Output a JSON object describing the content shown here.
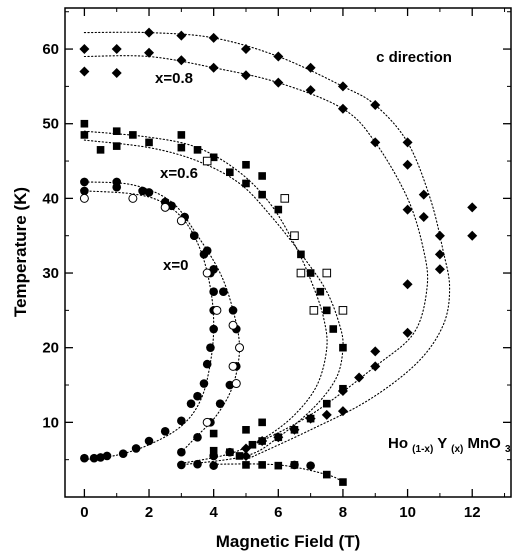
{
  "chart_data": {
    "type": "scatter",
    "title": "",
    "xlabel": "Magnetic Field (T)",
    "ylabel": "Temperature (K)",
    "xlim": [
      -0.6,
      13.2
    ],
    "ylim": [
      0,
      65.5
    ],
    "xticks": [
      "0",
      "2",
      "4",
      "6",
      "8",
      "10",
      "12"
    ],
    "yticks": [
      "10",
      "20",
      "30",
      "40",
      "50",
      "60"
    ],
    "grid": false,
    "legend": "none",
    "annotations": {
      "direction": "c direction",
      "x0": "x=0",
      "x06": "x=0.6",
      "x08": "x=0.8",
      "formula": {
        "main1": "Ho",
        "sub1": "(1-x)",
        "main2": "Y",
        "sub2": "(x)",
        "main3": "MnO",
        "sub3": "3"
      }
    },
    "series": [
      {
        "marker": "filled-circle",
        "points": [
          [
            0.0,
            5.2
          ],
          [
            0.3,
            5.2
          ],
          [
            0.5,
            5.3
          ],
          [
            0.7,
            5.5
          ],
          [
            1.2,
            5.8
          ],
          [
            1.6,
            6.5
          ],
          [
            2.0,
            7.5
          ],
          [
            2.5,
            8.8
          ],
          [
            3.0,
            10.2
          ],
          [
            3.3,
            12.5
          ],
          [
            3.5,
            13.5
          ],
          [
            3.7,
            15.2
          ],
          [
            3.8,
            17.8
          ],
          [
            3.9,
            20.0
          ],
          [
            4.0,
            22.5
          ],
          [
            4.0,
            25.0
          ],
          [
            4.0,
            27.5
          ],
          [
            3.9,
            30.0
          ],
          [
            3.7,
            32.5
          ],
          [
            3.4,
            35.0
          ],
          [
            3.1,
            37.5
          ],
          [
            2.5,
            39.5
          ],
          [
            1.8,
            41.0
          ],
          [
            1.0,
            41.5
          ],
          [
            0.0,
            41.0
          ],
          [
            0.0,
            42.2
          ],
          [
            1.0,
            42.2
          ],
          [
            2.0,
            40.8
          ],
          [
            2.7,
            39.0
          ],
          [
            3.1,
            37.5
          ],
          [
            3.4,
            35.0
          ],
          [
            3.8,
            33.0
          ],
          [
            4.0,
            30.5
          ],
          [
            4.3,
            27.5
          ],
          [
            4.6,
            25.0
          ],
          [
            4.7,
            22.5
          ],
          [
            4.8,
            20.0
          ],
          [
            4.7,
            17.5
          ],
          [
            4.5,
            15.0
          ],
          [
            4.2,
            12.5
          ],
          [
            3.9,
            10.0
          ],
          [
            3.5,
            8.0
          ],
          [
            3.0,
            6.0
          ],
          [
            3.0,
            4.3
          ],
          [
            3.5,
            4.4
          ],
          [
            4.0,
            4.2
          ],
          [
            4.0,
            5.5
          ],
          [
            4.5,
            6.0
          ],
          [
            6.5,
            4.3
          ],
          [
            7.0,
            4.2
          ]
        ]
      },
      {
        "marker": "open-circle",
        "points": [
          [
            0.0,
            40.0
          ],
          [
            1.5,
            40.0
          ],
          [
            2.5,
            38.8
          ],
          [
            3.0,
            37.0
          ],
          [
            3.8,
            30.0
          ],
          [
            4.1,
            25.0
          ],
          [
            4.6,
            23.0
          ],
          [
            4.8,
            20.0
          ],
          [
            4.6,
            17.5
          ],
          [
            4.7,
            15.2
          ],
          [
            3.8,
            10.0
          ]
        ]
      },
      {
        "marker": "filled-square",
        "points": [
          [
            0.0,
            50.0
          ],
          [
            0.0,
            48.5
          ],
          [
            0.5,
            46.5
          ],
          [
            1.0,
            49.0
          ],
          [
            1.0,
            47.0
          ],
          [
            1.5,
            48.5
          ],
          [
            2.0,
            47.5
          ],
          [
            3.0,
            48.5
          ],
          [
            3.0,
            46.8
          ],
          [
            3.5,
            46.5
          ],
          [
            4.0,
            45.5
          ],
          [
            4.5,
            43.5
          ],
          [
            5.0,
            44.5
          ],
          [
            5.0,
            42.0
          ],
          [
            5.5,
            43.0
          ],
          [
            5.5,
            40.5
          ],
          [
            6.0,
            38.5
          ],
          [
            6.5,
            35.0
          ],
          [
            6.7,
            32.5
          ],
          [
            7.0,
            30.0
          ],
          [
            7.3,
            27.5
          ],
          [
            7.5,
            25.0
          ],
          [
            7.7,
            22.5
          ],
          [
            8.0,
            20.0
          ],
          [
            8.0,
            14.5
          ],
          [
            7.5,
            12.5
          ],
          [
            7.0,
            10.5
          ],
          [
            6.5,
            9.0
          ],
          [
            6.0,
            8.0
          ],
          [
            5.5,
            7.5
          ],
          [
            5.2,
            7.0
          ],
          [
            4.8,
            5.5
          ],
          [
            4.5,
            6.0
          ],
          [
            4.0,
            8.5
          ],
          [
            5.0,
            9.0
          ],
          [
            5.5,
            10.0
          ],
          [
            4.0,
            6.2
          ],
          [
            6.0,
            4.2
          ],
          [
            6.5,
            4.3
          ],
          [
            7.5,
            3.0
          ],
          [
            8.0,
            2.0
          ],
          [
            5.5,
            4.3
          ],
          [
            5.0,
            4.3
          ]
        ]
      },
      {
        "marker": "open-square",
        "points": [
          [
            3.8,
            45.0
          ],
          [
            6.2,
            40.0
          ],
          [
            6.7,
            30.0
          ],
          [
            7.1,
            25.0
          ],
          [
            7.5,
            30.0
          ],
          [
            8.0,
            25.0
          ],
          [
            6.5,
            35.0
          ]
        ]
      },
      {
        "marker": "filled-diamond",
        "points": [
          [
            0.0,
            60.0
          ],
          [
            0.0,
            57.0
          ],
          [
            1.0,
            60.0
          ],
          [
            1.0,
            56.8
          ],
          [
            2.0,
            62.2
          ],
          [
            2.0,
            59.5
          ],
          [
            3.0,
            61.8
          ],
          [
            3.0,
            58.5
          ],
          [
            4.0,
            61.5
          ],
          [
            4.0,
            57.5
          ],
          [
            5.0,
            60.0
          ],
          [
            5.0,
            56.5
          ],
          [
            6.0,
            59.0
          ],
          [
            6.0,
            55.5
          ],
          [
            7.0,
            57.5
          ],
          [
            7.0,
            54.5
          ],
          [
            8.0,
            55.0
          ],
          [
            8.0,
            52.0
          ],
          [
            9.0,
            52.5
          ],
          [
            9.0,
            47.5
          ],
          [
            10.0,
            47.5
          ],
          [
            10.0,
            44.5
          ],
          [
            10.5,
            40.5
          ],
          [
            10.5,
            37.5
          ],
          [
            11.0,
            35.0
          ],
          [
            11.0,
            32.5
          ],
          [
            11.0,
            30.5
          ],
          [
            12.0,
            38.8
          ],
          [
            12.0,
            35.0
          ],
          [
            10.0,
            38.5
          ],
          [
            10.0,
            28.5
          ],
          [
            10.0,
            22.0
          ],
          [
            9.0,
            19.5
          ],
          [
            9.0,
            17.5
          ],
          [
            8.5,
            16.0
          ],
          [
            8.0,
            14.2
          ],
          [
            8.0,
            11.5
          ],
          [
            7.5,
            11.0
          ],
          [
            7.0,
            10.5
          ],
          [
            6.5,
            9.0
          ],
          [
            6.0,
            8.0
          ],
          [
            5.5,
            7.5
          ],
          [
            5.0,
            6.5
          ],
          [
            5.0,
            5.5
          ]
        ]
      }
    ],
    "fit_curves": [
      [
        [
          0.0,
          5.0
        ],
        [
          1.0,
          5.6
        ],
        [
          2.0,
          7.0
        ],
        [
          3.0,
          9.5
        ],
        [
          3.6,
          13.0
        ],
        [
          3.9,
          18.0
        ],
        [
          4.0,
          23.0
        ],
        [
          3.9,
          28.0
        ],
        [
          3.6,
          33.0
        ],
        [
          3.1,
          37.0
        ],
        [
          2.4,
          39.5
        ],
        [
          1.5,
          40.6
        ],
        [
          0.0,
          41.0
        ]
      ],
      [
        [
          0.0,
          42.2
        ],
        [
          1.5,
          41.8
        ],
        [
          2.7,
          39.5
        ],
        [
          3.5,
          35.0
        ],
        [
          4.2,
          30.0
        ],
        [
          4.6,
          25.0
        ],
        [
          4.8,
          20.0
        ],
        [
          4.6,
          15.0
        ],
        [
          4.1,
          11.0
        ],
        [
          3.4,
          7.8
        ],
        [
          3.0,
          6.0
        ]
      ],
      [
        [
          0.0,
          49.0
        ],
        [
          2.0,
          48.2
        ],
        [
          3.5,
          46.8
        ],
        [
          4.8,
          43.5
        ],
        [
          5.8,
          39.0
        ],
        [
          6.6,
          33.0
        ],
        [
          7.1,
          28.0
        ],
        [
          7.4,
          24.0
        ],
        [
          7.5,
          20.0
        ],
        [
          7.2,
          15.0
        ],
        [
          6.5,
          11.0
        ],
        [
          5.6,
          8.0
        ],
        [
          4.5,
          5.8
        ],
        [
          3.0,
          4.5
        ]
      ],
      [
        [
          0.0,
          47.8
        ],
        [
          2.0,
          46.8
        ],
        [
          3.5,
          45.0
        ],
        [
          4.8,
          42.0
        ],
        [
          5.8,
          37.5
        ],
        [
          6.8,
          32.0
        ],
        [
          7.5,
          27.5
        ],
        [
          7.9,
          23.0
        ],
        [
          8.0,
          20.0
        ],
        [
          7.8,
          16.0
        ],
        [
          7.1,
          12.0
        ],
        [
          6.0,
          8.0
        ],
        [
          5.0,
          5.5
        ],
        [
          3.0,
          4.3
        ]
      ],
      [
        [
          4.0,
          4.4
        ],
        [
          6.0,
          4.3
        ],
        [
          7.5,
          3.0
        ],
        [
          8.0,
          2.0
        ]
      ],
      [
        [
          0.0,
          62.2
        ],
        [
          2.0,
          62.2
        ],
        [
          4.0,
          61.5
        ],
        [
          6.0,
          59.0
        ],
        [
          8.0,
          55.0
        ],
        [
          9.0,
          52.5
        ],
        [
          10.0,
          47.5
        ],
        [
          10.7,
          40.0
        ],
        [
          11.1,
          33.0
        ],
        [
          11.3,
          28.0
        ],
        [
          11.1,
          23.0
        ],
        [
          10.3,
          18.0
        ],
        [
          8.8,
          13.0
        ],
        [
          7.0,
          9.0
        ],
        [
          5.0,
          5.0
        ]
      ],
      [
        [
          0.0,
          59.0
        ],
        [
          2.0,
          59.0
        ],
        [
          4.0,
          57.5
        ],
        [
          6.0,
          55.5
        ],
        [
          8.0,
          52.0
        ],
        [
          9.0,
          47.5
        ],
        [
          10.0,
          40.0
        ],
        [
          10.5,
          33.0
        ],
        [
          10.6,
          28.0
        ],
        [
          10.2,
          22.0
        ],
        [
          9.0,
          17.5
        ],
        [
          7.0,
          11.0
        ],
        [
          5.0,
          6.5
        ]
      ]
    ]
  }
}
